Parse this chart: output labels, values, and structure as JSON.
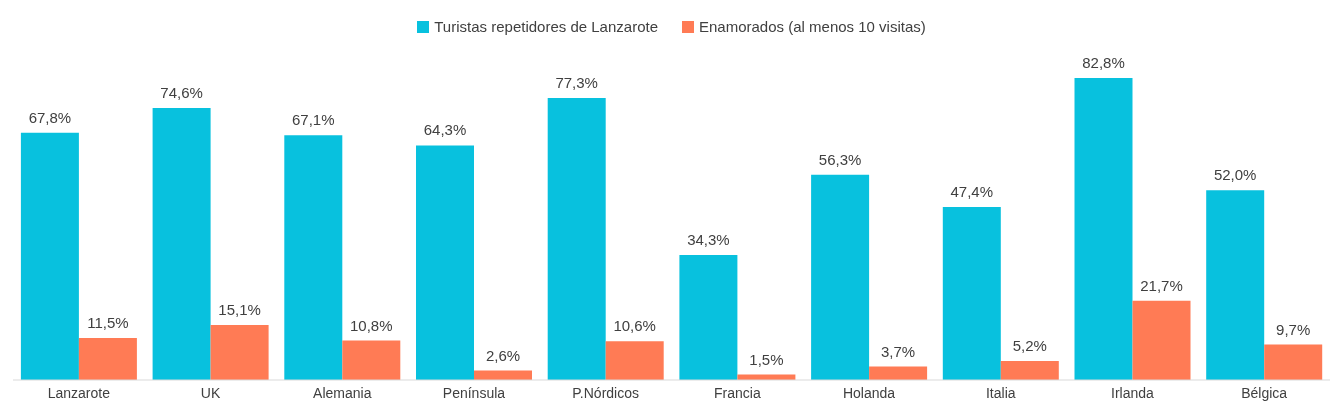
{
  "chart_data": {
    "type": "bar",
    "categories": [
      "Lanzarote",
      "UK",
      "Alemania",
      "Península",
      "P.Nórdicos",
      "Francia",
      "Holanda",
      "Italia",
      "Irlanda",
      "Bélgica"
    ],
    "series": [
      {
        "name": "Turistas repetidores de Lanzarote",
        "color": "#08c1de",
        "values": [
          67.8,
          74.6,
          67.1,
          64.3,
          77.3,
          34.3,
          56.3,
          47.4,
          82.8,
          52.0
        ],
        "value_labels": [
          "67,8%",
          "74,6%",
          "67,1%",
          "64,3%",
          "77,3%",
          "34,3%",
          "56,3%",
          "47,4%",
          "82,8%",
          "52,0%"
        ]
      },
      {
        "name": "Enamorados (al menos 10 visitas)",
        "color": "#ff7b55",
        "values": [
          11.5,
          15.1,
          10.8,
          2.6,
          10.6,
          1.5,
          3.7,
          5.2,
          21.7,
          9.7
        ],
        "value_labels": [
          "11,5%",
          "15,1%",
          "10,8%",
          "2,6%",
          "10,6%",
          "1,5%",
          "3,7%",
          "5,2%",
          "21,7%",
          "9,7%"
        ]
      }
    ],
    "legend": "top"
  }
}
